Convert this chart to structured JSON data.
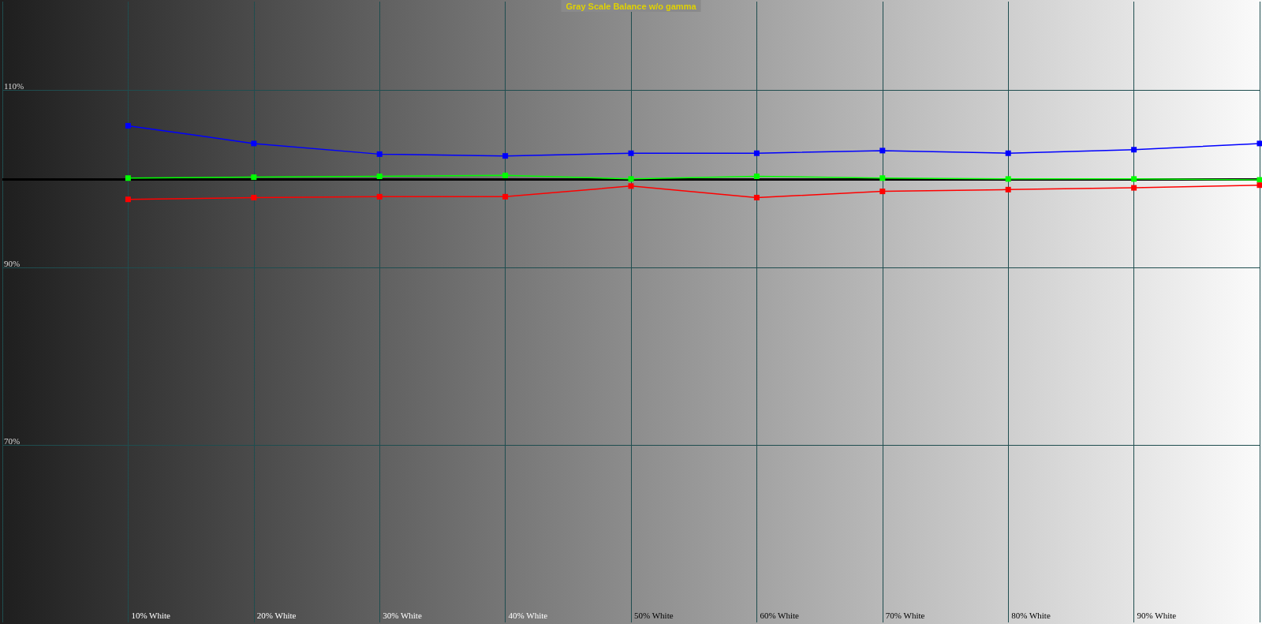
{
  "chart_data": {
    "type": "line",
    "title": "Gray Scale Balance w/o gamma",
    "categories": [
      null,
      "10% White",
      "20% White",
      "30% White",
      "40% White",
      "50% White",
      "60% White",
      "70% White",
      "80% White",
      "90% White",
      null
    ],
    "series": [
      {
        "color": "#0000ff",
        "values": [
          null,
          106.0,
          104.0,
          102.8,
          102.6,
          102.9,
          102.9,
          103.2,
          102.9,
          103.3,
          104.0
        ]
      },
      {
        "color": "#00ff00",
        "values": [
          null,
          100.1,
          100.2,
          100.3,
          100.4,
          100.0,
          100.3,
          100.1,
          100.0,
          100.0,
          99.9
        ]
      },
      {
        "color": "#ff0000",
        "values": [
          null,
          97.7,
          97.9,
          98.0,
          98.0,
          99.2,
          97.9,
          98.6,
          98.8,
          99.0,
          99.3
        ]
      }
    ],
    "ylim": [
      50,
      120
    ],
    "yticks": [
      {
        "value": 70,
        "label": "70%"
      },
      {
        "value": 90,
        "label": "90%"
      },
      {
        "value": 110,
        "label": "110%"
      }
    ],
    "ref_lines": [
      {
        "axis": "y",
        "value": 100,
        "color": "#000000"
      }
    ],
    "grid": true,
    "marker": "square",
    "line_style": "solid"
  }
}
